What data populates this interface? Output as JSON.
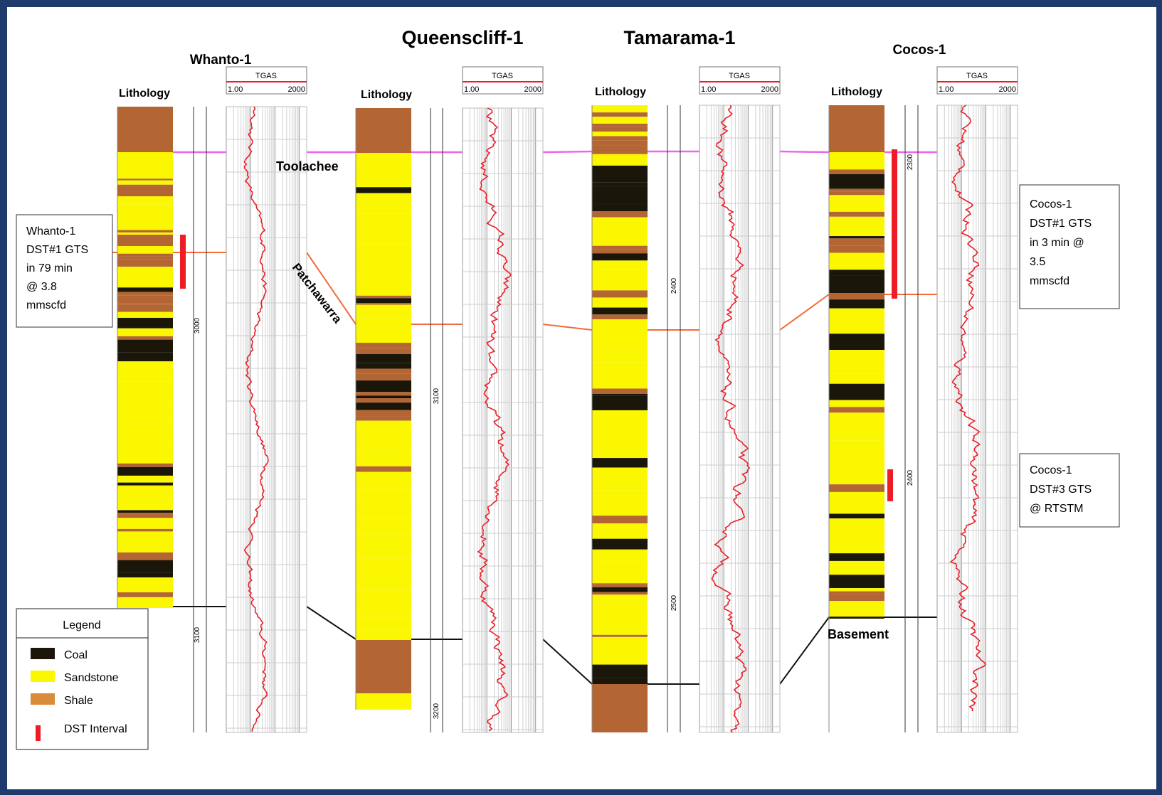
{
  "colors": {
    "coal": "#1a1609",
    "sandstone": "#fbf700",
    "shale": "#b36534",
    "legend_shale": "#d98a3a",
    "tgas_curve": "#e8202a",
    "dst_bar": "#ee1c25",
    "toolachee_line": "#ee66ee",
    "patchawarra_line": "#f26b3a",
    "basement_line": "#111111",
    "frame": "#1f3b6e"
  },
  "wells": [
    {
      "name": "Whanto-1",
      "lithology_label": "Lithology",
      "depth_labels": [
        "3000",
        "3100"
      ],
      "tgas": {
        "title": "TGAS",
        "min": "1.00",
        "max": "2000"
      }
    },
    {
      "name": "Queenscliff-1",
      "lithology_label": "Lithology",
      "depth_labels": [
        "3100",
        "3200"
      ],
      "tgas": {
        "title": "TGAS",
        "min": "1.00",
        "max": "2000"
      }
    },
    {
      "name": "Tamarama-1",
      "lithology_label": "Lithology",
      "depth_labels": [
        "2400",
        "2500"
      ],
      "tgas": {
        "title": "TGAS",
        "min": "1.00",
        "max": "2000"
      }
    },
    {
      "name": "Cocos-1",
      "lithology_label": "Lithology",
      "depth_labels": [
        "2300",
        "2400"
      ],
      "tgas": {
        "title": "TGAS",
        "min": "1.00",
        "max": "2000"
      }
    }
  ],
  "horizons": {
    "toolachee": "Toolachee",
    "patchawarra": "Patchawarra",
    "basement": "Basement"
  },
  "callouts": {
    "whanto_dst1": [
      "Whanto-1",
      "DST#1 GTS",
      "in 79 min",
      "@ 3.8",
      "mmscfd"
    ],
    "cocos_dst1": [
      "Cocos-1",
      "DST#1 GTS",
      "in 3 min @",
      "3.5",
      "mmscfd"
    ],
    "cocos_dst3": [
      "Cocos-1",
      "DST#3 GTS",
      "@ RTSTM"
    ]
  },
  "legend": {
    "title": "Legend",
    "items": [
      {
        "label": "Coal",
        "icon": "coal-swatch"
      },
      {
        "label": "Sandstone",
        "icon": "sandstone-swatch"
      },
      {
        "label": "Shale",
        "icon": "shale-swatch"
      },
      {
        "label": "DST Interval",
        "icon": "dst-bar-icon"
      }
    ]
  }
}
